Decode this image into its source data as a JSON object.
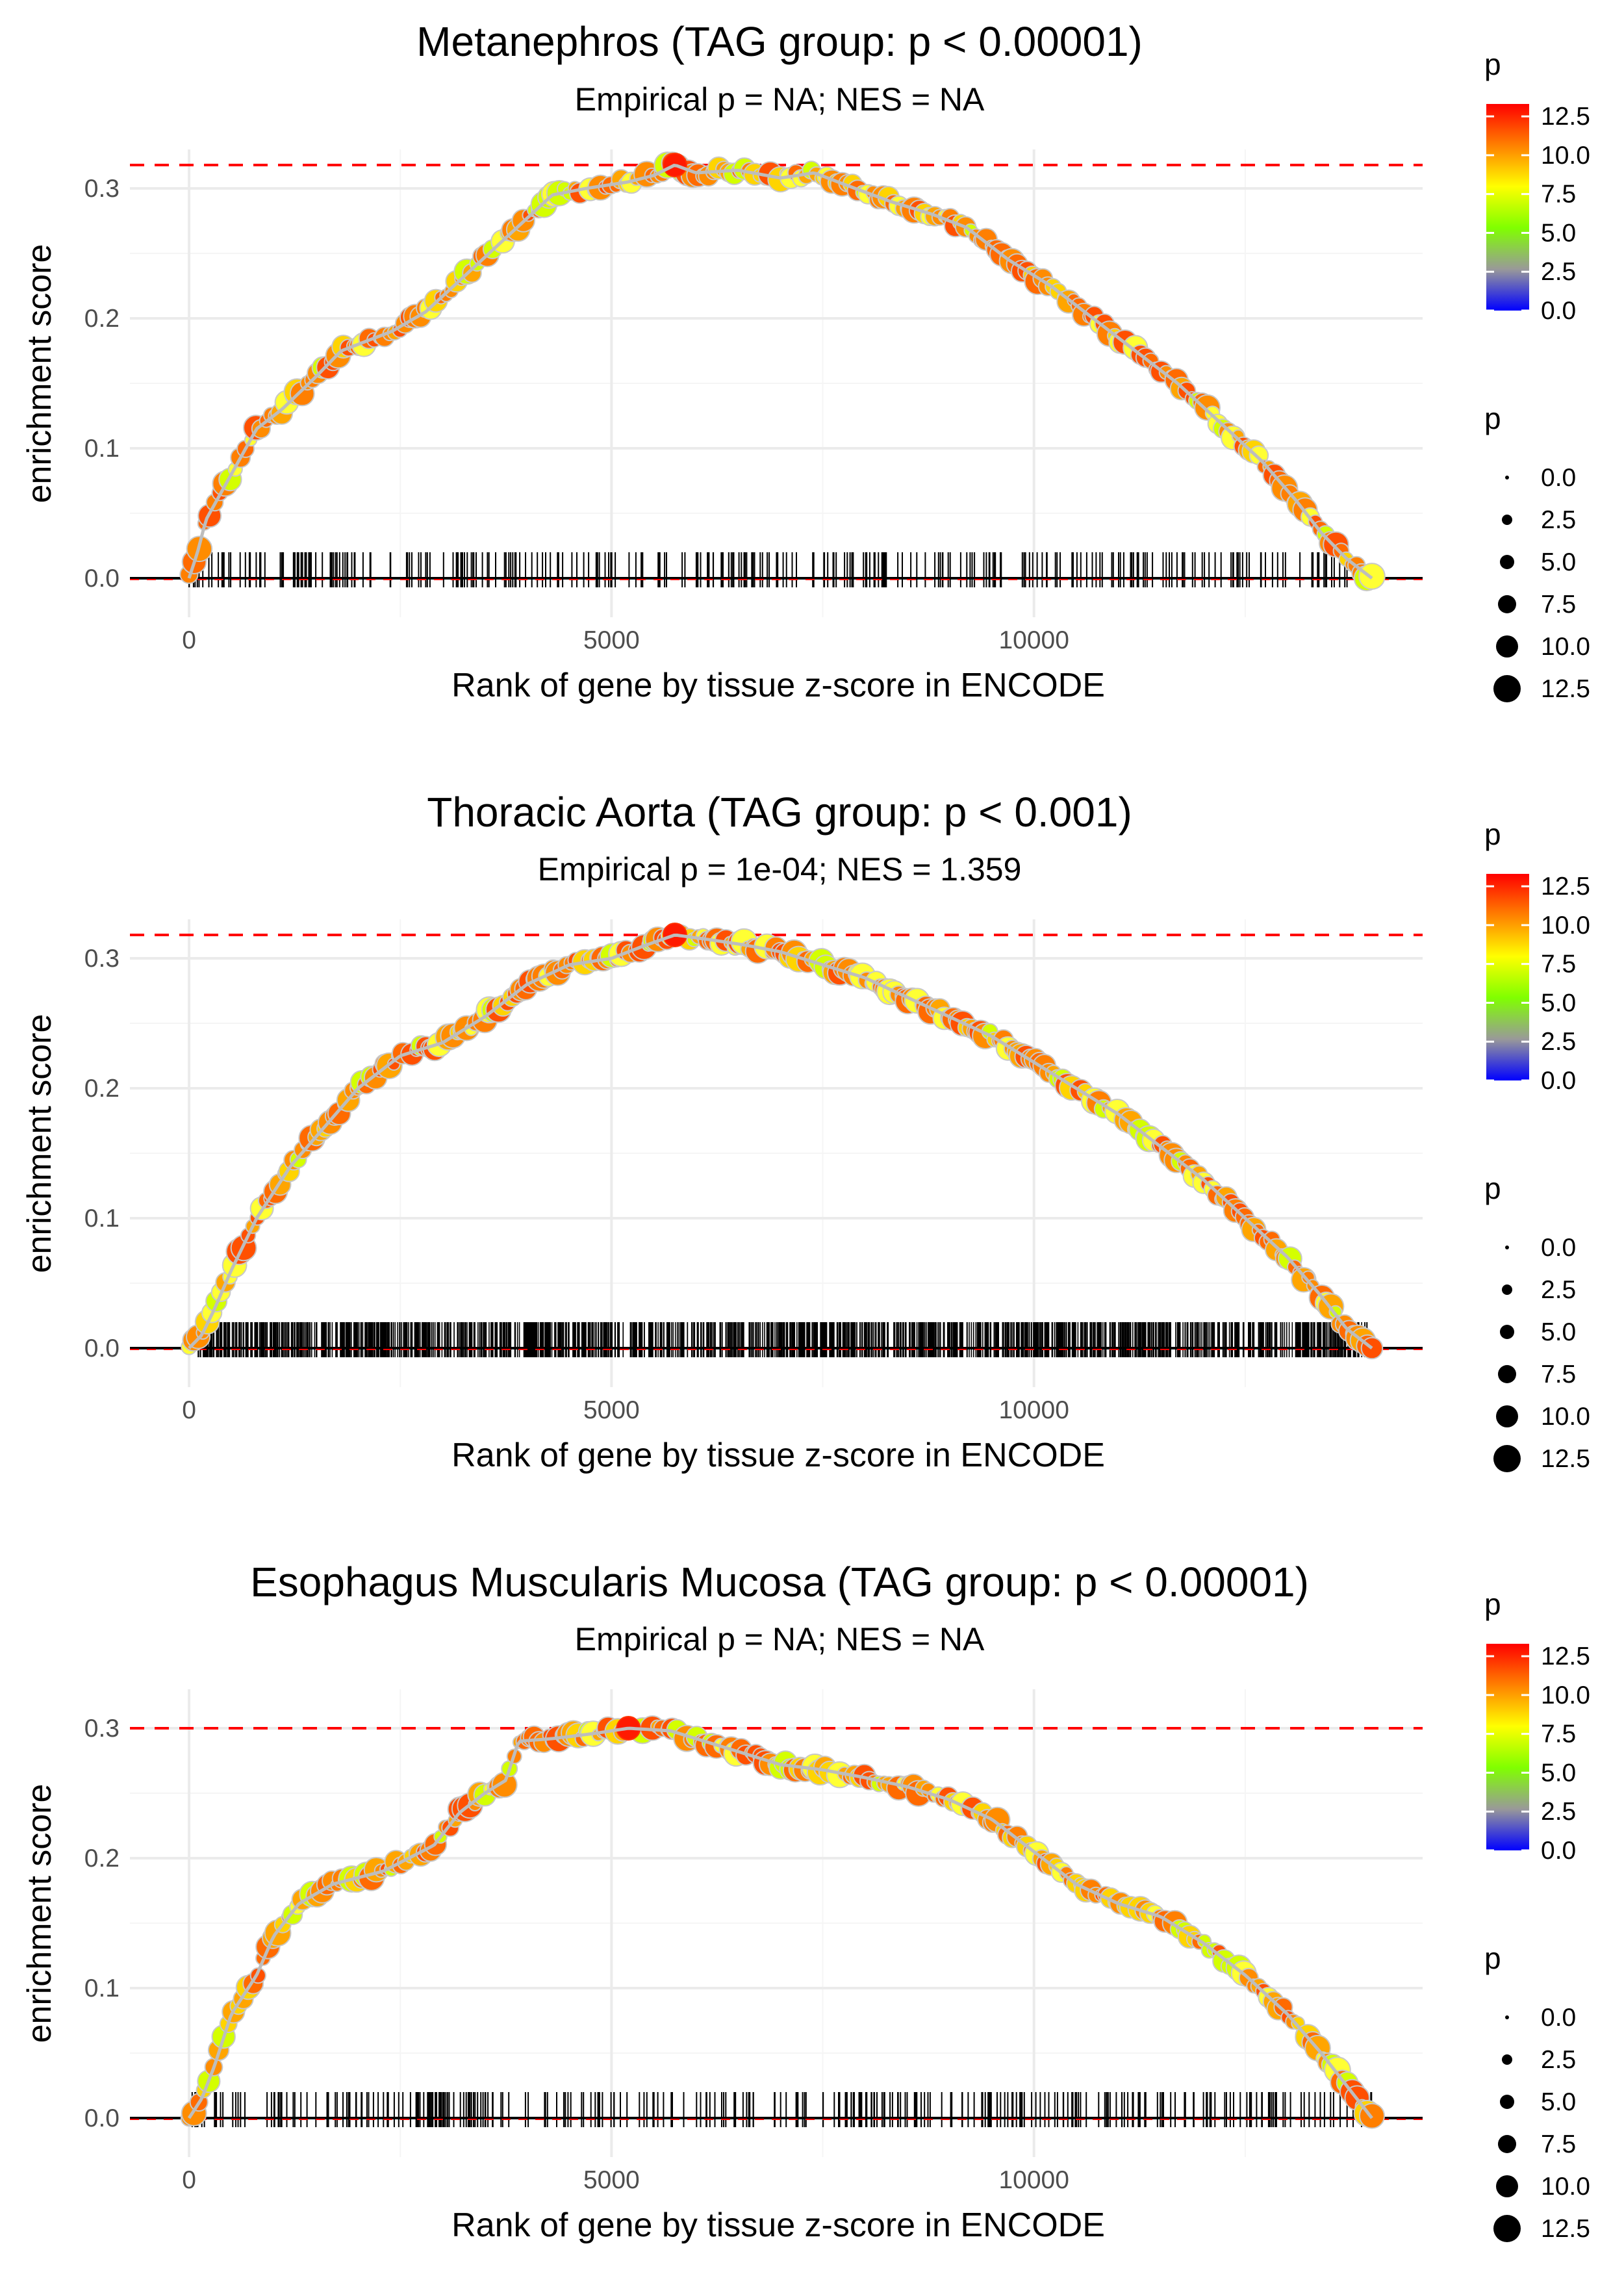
{
  "chart_data": [
    {
      "type": "line",
      "title": "Metanephros (TAG group: p < 0.00001)",
      "subtitle": "Empirical p = NA; NES = NA",
      "xlabel": "Rank of gene by tissue z-score in ENCODE",
      "ylabel": "enrichment score",
      "xlim": [
        -700,
        14600
      ],
      "ylim": [
        -0.03,
        0.33
      ],
      "x_ticks": [
        0,
        5000,
        10000
      ],
      "x_tick_labels": [
        "0",
        "5000",
        "10000"
      ],
      "y_ticks": [
        0.0,
        0.1,
        0.2,
        0.3
      ],
      "y_tick_labels": [
        "0.0",
        "0.1",
        "0.2",
        "0.3"
      ],
      "max_es_line": 0.318,
      "num_points": 230,
      "rug_density": "sparse",
      "legend_color": {
        "title": "p",
        "ticks": [
          "12.5",
          "10.0",
          "7.5",
          "5.0",
          "2.5",
          "0.0"
        ]
      },
      "legend_size": {
        "title": "p",
        "labels": [
          "0.0",
          "2.5",
          "5.0",
          "7.5",
          "10.0",
          "12.5"
        ]
      },
      "curve": [
        [
          0,
          0.0
        ],
        [
          100,
          0.02
        ],
        [
          200,
          0.045
        ],
        [
          500,
          0.08
        ],
        [
          800,
          0.115
        ],
        [
          1100,
          0.13
        ],
        [
          1500,
          0.155
        ],
        [
          1800,
          0.175
        ],
        [
          2000,
          0.18
        ],
        [
          2400,
          0.19
        ],
        [
          2800,
          0.205
        ],
        [
          3300,
          0.235
        ],
        [
          3800,
          0.265
        ],
        [
          4300,
          0.295
        ],
        [
          4700,
          0.3
        ],
        [
          5200,
          0.305
        ],
        [
          5500,
          0.31
        ],
        [
          5750,
          0.318
        ],
        [
          6000,
          0.312
        ],
        [
          6500,
          0.314
        ],
        [
          7000,
          0.308
        ],
        [
          7400,
          0.312
        ],
        [
          7800,
          0.302
        ],
        [
          8300,
          0.29
        ],
        [
          8800,
          0.28
        ],
        [
          9200,
          0.27
        ],
        [
          9700,
          0.245
        ],
        [
          10200,
          0.225
        ],
        [
          10700,
          0.2
        ],
        [
          11200,
          0.175
        ],
        [
          11700,
          0.15
        ],
        [
          12200,
          0.12
        ],
        [
          12700,
          0.09
        ],
        [
          13100,
          0.06
        ],
        [
          13400,
          0.035
        ],
        [
          13700,
          0.015
        ],
        [
          14000,
          0.0
        ]
      ]
    },
    {
      "type": "line",
      "title": "Thoracic Aorta (TAG group: p < 0.001)",
      "subtitle": "Empirical p = 1e-04; NES = 1.359",
      "xlabel": "Rank of gene by tissue z-score in ENCODE",
      "ylabel": "enrichment score",
      "xlim": [
        -700,
        14600
      ],
      "ylim": [
        -0.03,
        0.33
      ],
      "x_ticks": [
        0,
        5000,
        10000
      ],
      "x_tick_labels": [
        "0",
        "5000",
        "10000"
      ],
      "y_ticks": [
        0.0,
        0.1,
        0.2,
        0.3
      ],
      "y_tick_labels": [
        "0.0",
        "0.1",
        "0.2",
        "0.3"
      ],
      "max_es_line": 0.318,
      "num_points": 260,
      "rug_density": "dense",
      "legend_color": {
        "title": "p",
        "ticks": [
          "12.5",
          "10.0",
          "7.5",
          "5.0",
          "2.5",
          "0.0"
        ]
      },
      "legend_size": {
        "title": "p",
        "labels": [
          "0.0",
          "2.5",
          "5.0",
          "7.5",
          "10.0",
          "12.5"
        ]
      },
      "curve": [
        [
          0,
          0.0
        ],
        [
          150,
          0.01
        ],
        [
          300,
          0.03
        ],
        [
          500,
          0.06
        ],
        [
          800,
          0.1
        ],
        [
          1200,
          0.14
        ],
        [
          1600,
          0.17
        ],
        [
          2000,
          0.2
        ],
        [
          2500,
          0.225
        ],
        [
          3000,
          0.235
        ],
        [
          3500,
          0.255
        ],
        [
          4000,
          0.28
        ],
        [
          4500,
          0.295
        ],
        [
          5000,
          0.3
        ],
        [
          5400,
          0.31
        ],
        [
          5750,
          0.318
        ],
        [
          6200,
          0.314
        ],
        [
          6600,
          0.31
        ],
        [
          7000,
          0.305
        ],
        [
          7500,
          0.295
        ],
        [
          8000,
          0.285
        ],
        [
          8500,
          0.27
        ],
        [
          9000,
          0.255
        ],
        [
          9500,
          0.24
        ],
        [
          10000,
          0.22
        ],
        [
          10500,
          0.2
        ],
        [
          11000,
          0.18
        ],
        [
          11500,
          0.155
        ],
        [
          12000,
          0.13
        ],
        [
          12500,
          0.1
        ],
        [
          13000,
          0.07
        ],
        [
          13400,
          0.04
        ],
        [
          13700,
          0.015
        ],
        [
          14000,
          0.0
        ]
      ]
    },
    {
      "type": "line",
      "title": "Esophagus Muscularis Mucosa (TAG group: p < 0.00001)",
      "subtitle": "Empirical p = NA; NES = NA",
      "xlabel": "Rank of gene by tissue z-score in ENCODE",
      "ylabel": "enrichment score",
      "xlim": [
        -700,
        14600
      ],
      "ylim": [
        -0.03,
        0.33
      ],
      "x_ticks": [
        0,
        5000,
        10000
      ],
      "x_tick_labels": [
        "0",
        "5000",
        "10000"
      ],
      "y_ticks": [
        0.0,
        0.1,
        0.2,
        0.3
      ],
      "y_tick_labels": [
        "0.0",
        "0.1",
        "0.2",
        "0.3"
      ],
      "max_es_line": 0.3,
      "num_points": 240,
      "rug_density": "sparse",
      "legend_color": {
        "title": "p",
        "ticks": [
          "12.5",
          "10.0",
          "7.5",
          "5.0",
          "2.5",
          "0.0"
        ]
      },
      "legend_size": {
        "title": "p",
        "labels": [
          "0.0",
          "2.5",
          "5.0",
          "7.5",
          "10.0",
          "12.5"
        ]
      },
      "curve": [
        [
          0,
          0.0
        ],
        [
          150,
          0.015
        ],
        [
          300,
          0.04
        ],
        [
          500,
          0.08
        ],
        [
          800,
          0.11
        ],
        [
          1000,
          0.14
        ],
        [
          1300,
          0.165
        ],
        [
          1700,
          0.18
        ],
        [
          2000,
          0.185
        ],
        [
          2300,
          0.19
        ],
        [
          2600,
          0.2
        ],
        [
          2900,
          0.21
        ],
        [
          3200,
          0.235
        ],
        [
          3500,
          0.25
        ],
        [
          3750,
          0.26
        ],
        [
          3900,
          0.29
        ],
        [
          4300,
          0.292
        ],
        [
          4800,
          0.296
        ],
        [
          5200,
          0.3
        ],
        [
          5700,
          0.298
        ],
        [
          6000,
          0.292
        ],
        [
          6500,
          0.282
        ],
        [
          7000,
          0.272
        ],
        [
          7500,
          0.268
        ],
        [
          8000,
          0.262
        ],
        [
          8500,
          0.255
        ],
        [
          9000,
          0.245
        ],
        [
          9500,
          0.23
        ],
        [
          10000,
          0.205
        ],
        [
          10500,
          0.18
        ],
        [
          11000,
          0.165
        ],
        [
          11500,
          0.155
        ],
        [
          12000,
          0.135
        ],
        [
          12500,
          0.11
        ],
        [
          13000,
          0.08
        ],
        [
          13400,
          0.05
        ],
        [
          13700,
          0.025
        ],
        [
          14000,
          0.0
        ]
      ]
    }
  ]
}
